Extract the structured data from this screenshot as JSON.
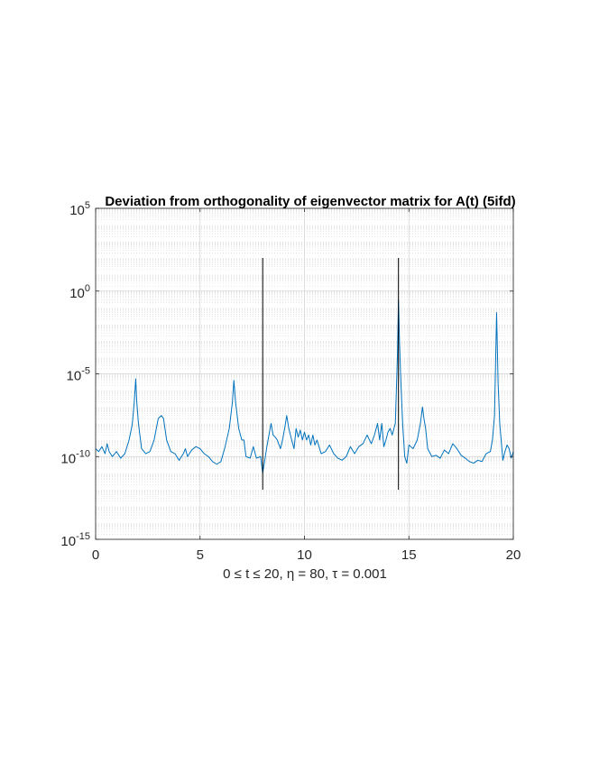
{
  "chart_data": {
    "type": "line",
    "title": "Deviation from orthogonality of eigenvector matrix for A(t) (5ifd)",
    "xlabel": "0 ≤ t ≤ 20,  η = 80,  τ = 0.001",
    "ylabel": "",
    "xlim": [
      0,
      20
    ],
    "ylim_log10": [
      -15,
      5
    ],
    "yscale": "log",
    "grid": true,
    "xticks": [
      0,
      5,
      10,
      15,
      20
    ],
    "yticks": [
      {
        "base": "10",
        "exp": "-15",
        "log": -15
      },
      {
        "base": "10",
        "exp": "-10",
        "log": -10
      },
      {
        "base": "10",
        "exp": "-5",
        "log": -5
      },
      {
        "base": "10",
        "exp": "0",
        "log": 0
      },
      {
        "base": "10",
        "exp": "5",
        "log": 5
      }
    ],
    "line_color": "#0072BD",
    "marker_color": "#000000",
    "vertical_markers": [
      {
        "x": 8.0,
        "y_low": 1e-12,
        "y_high": 100.0
      },
      {
        "x": 14.5,
        "y_low": 1e-12,
        "y_high": 100.0
      }
    ],
    "series": [
      {
        "points": [
          [
            0.0,
            3e-10
          ],
          [
            0.15,
            2e-10
          ],
          [
            0.3,
            4e-10
          ],
          [
            0.45,
            1.5e-10
          ],
          [
            0.55,
            6e-10
          ],
          [
            0.65,
            2e-10
          ],
          [
            0.8,
            1e-10
          ],
          [
            1.0,
            2e-10
          ],
          [
            1.2,
            8e-11
          ],
          [
            1.4,
            1.5e-10
          ],
          [
            1.6,
            1e-09
          ],
          [
            1.75,
            8e-09
          ],
          [
            1.85,
            2e-07
          ],
          [
            1.92,
            5e-06
          ],
          [
            1.97,
            2e-07
          ],
          [
            2.05,
            1e-08
          ],
          [
            2.2,
            3e-10
          ],
          [
            2.4,
            1.5e-10
          ],
          [
            2.6,
            2e-10
          ],
          [
            2.8,
            1e-09
          ],
          [
            3.0,
            2e-08
          ],
          [
            3.15,
            3e-08
          ],
          [
            3.25,
            2e-08
          ],
          [
            3.4,
            1e-09
          ],
          [
            3.6,
            2e-10
          ],
          [
            3.8,
            1.5e-10
          ],
          [
            4.0,
            6e-11
          ],
          [
            4.2,
            1.5e-10
          ],
          [
            4.3,
            3e-10
          ],
          [
            4.4,
            1e-10
          ],
          [
            4.6,
            2.5e-10
          ],
          [
            4.8,
            4e-10
          ],
          [
            5.0,
            3e-10
          ],
          [
            5.2,
            1.5e-10
          ],
          [
            5.4,
            1e-10
          ],
          [
            5.6,
            5e-11
          ],
          [
            5.8,
            3.5e-11
          ],
          [
            6.0,
            5e-11
          ],
          [
            6.2,
            4e-10
          ],
          [
            6.4,
            5e-09
          ],
          [
            6.55,
            2e-07
          ],
          [
            6.62,
            4e-06
          ],
          [
            6.7,
            2e-07
          ],
          [
            6.85,
            5e-09
          ],
          [
            7.0,
            1e-09
          ],
          [
            7.1,
            1e-09
          ],
          [
            7.2,
            1e-10
          ],
          [
            7.4,
            8e-11
          ],
          [
            7.55,
            4e-10
          ],
          [
            7.7,
            8e-11
          ],
          [
            7.9,
            1e-10
          ],
          [
            8.0,
            1e-11
          ],
          [
            8.1,
            6e-11
          ],
          [
            8.2,
            4e-10
          ],
          [
            8.3,
            2e-09
          ],
          [
            8.4,
            1e-08
          ],
          [
            8.5,
            2e-09
          ],
          [
            8.6,
            1.5e-09
          ],
          [
            8.7,
            1e-09
          ],
          [
            8.85,
            3e-10
          ],
          [
            8.95,
            1e-09
          ],
          [
            9.05,
            5e-09
          ],
          [
            9.15,
            3e-08
          ],
          [
            9.25,
            5e-09
          ],
          [
            9.35,
            1.5e-09
          ],
          [
            9.5,
            3e-10
          ],
          [
            9.6,
            5e-09
          ],
          [
            9.7,
            1.5e-09
          ],
          [
            9.8,
            4e-09
          ],
          [
            9.9,
            1e-09
          ],
          [
            10.0,
            3e-09
          ],
          [
            10.1,
            1e-09
          ],
          [
            10.2,
            2e-09
          ],
          [
            10.3,
            5e-10
          ],
          [
            10.4,
            2e-09
          ],
          [
            10.5,
            5e-10
          ],
          [
            10.6,
            1e-09
          ],
          [
            10.8,
            1.5e-10
          ],
          [
            11.0,
            2e-10
          ],
          [
            11.2,
            5e-10
          ],
          [
            11.4,
            1.5e-10
          ],
          [
            11.6,
            8e-11
          ],
          [
            11.8,
            6e-11
          ],
          [
            12.0,
            1e-10
          ],
          [
            12.2,
            4e-10
          ],
          [
            12.4,
            1.5e-10
          ],
          [
            12.6,
            4e-10
          ],
          [
            12.8,
            6e-10
          ],
          [
            13.0,
            2e-09
          ],
          [
            13.2,
            6e-10
          ],
          [
            13.35,
            2e-09
          ],
          [
            13.5,
            1e-08
          ],
          [
            13.6,
            1e-09
          ],
          [
            13.7,
            1e-08
          ],
          [
            13.8,
            4e-10
          ],
          [
            13.9,
            1e-09
          ],
          [
            14.0,
            3e-09
          ],
          [
            14.1,
            5e-09
          ],
          [
            14.2,
            2e-09
          ],
          [
            14.35,
            1e-08
          ],
          [
            14.45,
            0.0001
          ],
          [
            14.5,
            0.3
          ],
          [
            14.55,
            0.001
          ],
          [
            14.6,
            1e-05
          ],
          [
            14.7,
            1e-08
          ],
          [
            14.8,
            1e-10
          ],
          [
            14.9,
            4e-11
          ],
          [
            15.0,
            5e-10
          ],
          [
            15.2,
            3e-10
          ],
          [
            15.4,
            1e-09
          ],
          [
            15.55,
            1e-08
          ],
          [
            15.65,
            1e-07
          ],
          [
            15.72,
            2e-08
          ],
          [
            15.8,
            5e-09
          ],
          [
            15.9,
            3e-10
          ],
          [
            16.1,
            1e-10
          ],
          [
            16.3,
            1.2e-10
          ],
          [
            16.5,
            8e-11
          ],
          [
            16.7,
            2.5e-10
          ],
          [
            16.9,
            1.5e-10
          ],
          [
            17.1,
            6e-10
          ],
          [
            17.3,
            3e-10
          ],
          [
            17.5,
            1.2e-10
          ],
          [
            17.7,
            8e-11
          ],
          [
            17.9,
            5e-11
          ],
          [
            18.1,
            4e-11
          ],
          [
            18.3,
            6e-11
          ],
          [
            18.5,
            5e-11
          ],
          [
            18.7,
            1.5e-10
          ],
          [
            18.9,
            2e-10
          ],
          [
            19.0,
            1e-09
          ],
          [
            19.1,
            3e-08
          ],
          [
            19.2,
            0.05
          ],
          [
            19.27,
            3e-06
          ],
          [
            19.35,
            1e-08
          ],
          [
            19.5,
            6e-11
          ],
          [
            19.6,
            2e-10
          ],
          [
            19.7,
            5e-10
          ],
          [
            19.8,
            3e-10
          ],
          [
            19.9,
            8e-11
          ],
          [
            20.0,
            2e-10
          ]
        ]
      }
    ]
  }
}
